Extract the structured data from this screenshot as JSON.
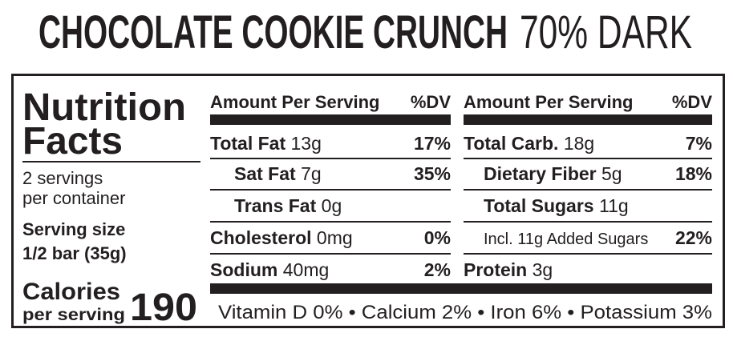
{
  "title": {
    "name": "CHOCOLATE COOKIE CRUNCH",
    "variant": "70% DARK"
  },
  "label": {
    "heading": [
      "Nutrition",
      "Facts"
    ],
    "servings": [
      "2 servings",
      "per container"
    ],
    "serving_size": [
      "Serving size",
      "1/2 bar (35g)"
    ],
    "calories": {
      "label": "Calories",
      "sub": "per serving",
      "value": "190"
    },
    "columns": [
      {
        "header": {
          "amount": "Amount Per Serving",
          "dv": "%DV"
        },
        "rows": [
          {
            "name": "Total Fat",
            "amount": "13g",
            "dv": "17%"
          },
          {
            "name": "Sat Fat",
            "amount": "7g",
            "dv": "35%"
          },
          {
            "name": "Trans Fat",
            "amount": "0g"
          },
          {
            "name": "Cholesterol",
            "amount": "0mg",
            "dv": "0%"
          },
          {
            "name": "Sodium",
            "amount": "40mg",
            "dv": "2%"
          }
        ]
      },
      {
        "header": {
          "amount": "Amount Per Serving",
          "dv": "%DV"
        },
        "rows": [
          {
            "name": "Total Carb.",
            "amount": "18g",
            "dv": "7%"
          },
          {
            "name": "Dietary Fiber",
            "amount": "5g",
            "dv": "18%"
          },
          {
            "name": "Total Sugars",
            "amount": "11g"
          },
          {
            "name": "Incl. 11g Added Sugars",
            "dv": "22%"
          },
          {
            "name": "Protein",
            "amount": "3g"
          }
        ]
      }
    ],
    "footer": "Vitamin D 0% • Calcium 2% • Iron 6% • Potassium 3%"
  }
}
